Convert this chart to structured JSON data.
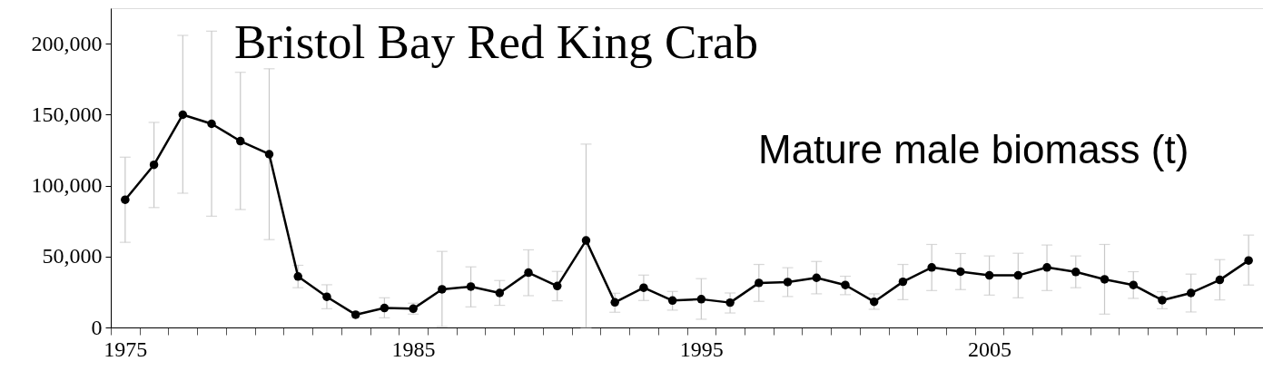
{
  "chart_data": {
    "type": "line",
    "title": "Bristol Bay Red King Crab",
    "annotations": [
      "Mature male biomass (t)"
    ],
    "categories": [
      "1975",
      null,
      null,
      null,
      null,
      null,
      null,
      null,
      null,
      null,
      "1985",
      null,
      null,
      null,
      null,
      null,
      null,
      null,
      null,
      null,
      "1995",
      null,
      null,
      null,
      null,
      null,
      null,
      null,
      null,
      null,
      "2005",
      null,
      null,
      null,
      null,
      null,
      null,
      null,
      null,
      null
    ],
    "series": [
      {
        "color": "#000000",
        "values": [
          90000,
          114600,
          149900,
          143500,
          131300,
          122100,
          35900,
          21600,
          9000,
          13700,
          13200,
          26900,
          28800,
          24300,
          38600,
          29200,
          61300,
          17700,
          28000,
          19000,
          19900,
          17500,
          31400,
          32000,
          35000,
          29900,
          18100,
          32200,
          42300,
          39300,
          36700,
          36700,
          42300,
          39100,
          33900,
          29900,
          19200,
          24300,
          33500,
          47200
        ],
        "errors": [
          [
            60000,
            120000
          ],
          [
            84500,
            144500
          ],
          [
            94600,
            205800
          ],
          [
            78400,
            208800
          ],
          [
            83100,
            179800
          ],
          [
            61900,
            182300
          ],
          [
            28000,
            43800
          ],
          [
            13200,
            30100
          ],
          [
            7000,
            11000
          ],
          [
            6800,
            20900
          ],
          [
            9400,
            17100
          ],
          [
            600,
            53600
          ],
          [
            14500,
            42700
          ],
          [
            15600,
            33100
          ],
          [
            22400,
            54700
          ],
          [
            18800,
            39500
          ],
          [
            0,
            129200
          ],
          [
            10700,
            24100
          ],
          [
            19000,
            36900
          ],
          [
            12200,
            25400
          ],
          [
            5800,
            34400
          ],
          [
            10200,
            24300
          ],
          [
            18400,
            44400
          ],
          [
            21800,
            42100
          ],
          [
            23700,
            46500
          ],
          [
            23100,
            36100
          ],
          [
            12800,
            23700
          ],
          [
            19600,
            44400
          ],
          [
            26000,
            58500
          ],
          [
            26700,
            52100
          ],
          [
            22800,
            50400
          ],
          [
            20900,
            52300
          ],
          [
            26000,
            58100
          ],
          [
            28000,
            50400
          ],
          [
            9400,
            58500
          ],
          [
            20500,
            39300
          ],
          [
            13200,
            25200
          ],
          [
            10900,
            37600
          ],
          [
            19400,
            47800
          ],
          [
            29900,
            65100
          ]
        ]
      }
    ],
    "ylim": [
      0,
      225000
    ],
    "yticks": [
      0,
      {
        "value": 50000,
        "label": "50,000"
      },
      {
        "value": 100000,
        "label": "100,000"
      },
      {
        "value": 150000,
        "label": "150,000"
      },
      {
        "value": 200000,
        "label": "200,000"
      }
    ],
    "grid": false,
    "marker": "circle",
    "line_style": "solid"
  }
}
